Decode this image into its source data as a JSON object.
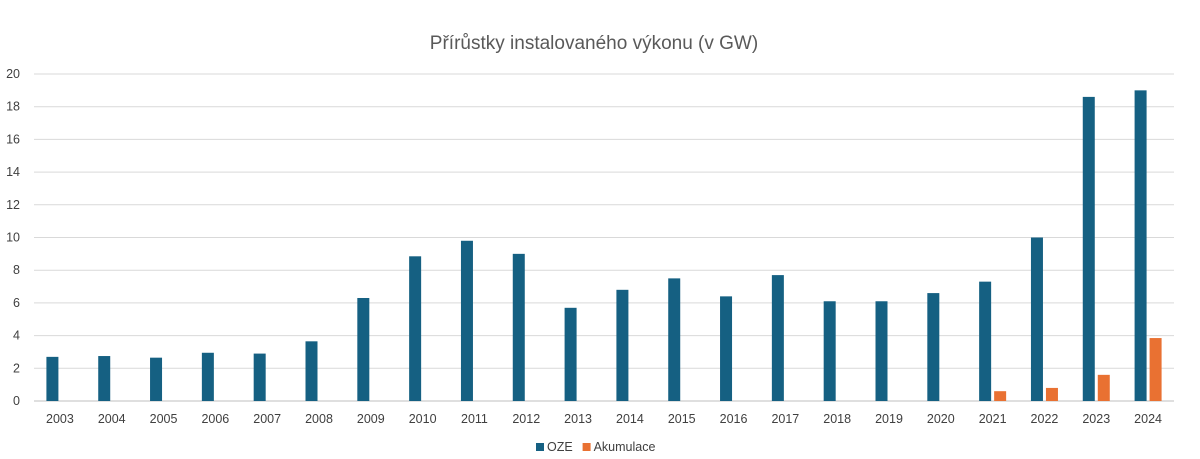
{
  "chart_data": {
    "type": "bar",
    "title": "Přírůstky instalovaného výkonu (v GW)",
    "xlabel": "",
    "ylabel": "",
    "ylim": [
      0,
      20
    ],
    "yticks": [
      0,
      2,
      4,
      6,
      8,
      10,
      12,
      14,
      16,
      18,
      20
    ],
    "grid": true,
    "legend_position": "bottom",
    "categories": [
      "2003",
      "2004",
      "2005",
      "2006",
      "2007",
      "2008",
      "2009",
      "2010",
      "2011",
      "2012",
      "2013",
      "2014",
      "2015",
      "2016",
      "2017",
      "2018",
      "2019",
      "2020",
      "2021",
      "2022",
      "2023",
      "2024"
    ],
    "series": [
      {
        "name": "OZE",
        "color": "#156082",
        "values": [
          2.7,
          2.75,
          2.65,
          2.95,
          2.9,
          3.65,
          6.3,
          8.85,
          9.8,
          9.0,
          5.7,
          6.8,
          7.5,
          6.4,
          7.7,
          6.1,
          6.1,
          6.6,
          7.3,
          10.0,
          18.6,
          19.0
        ]
      },
      {
        "name": "Akumulace",
        "color": "#E97132",
        "values": [
          0,
          0,
          0,
          0,
          0,
          0,
          0,
          0,
          0,
          0,
          0,
          0,
          0,
          0,
          0,
          0,
          0,
          0,
          0.6,
          0.8,
          1.6,
          3.85
        ]
      }
    ]
  }
}
